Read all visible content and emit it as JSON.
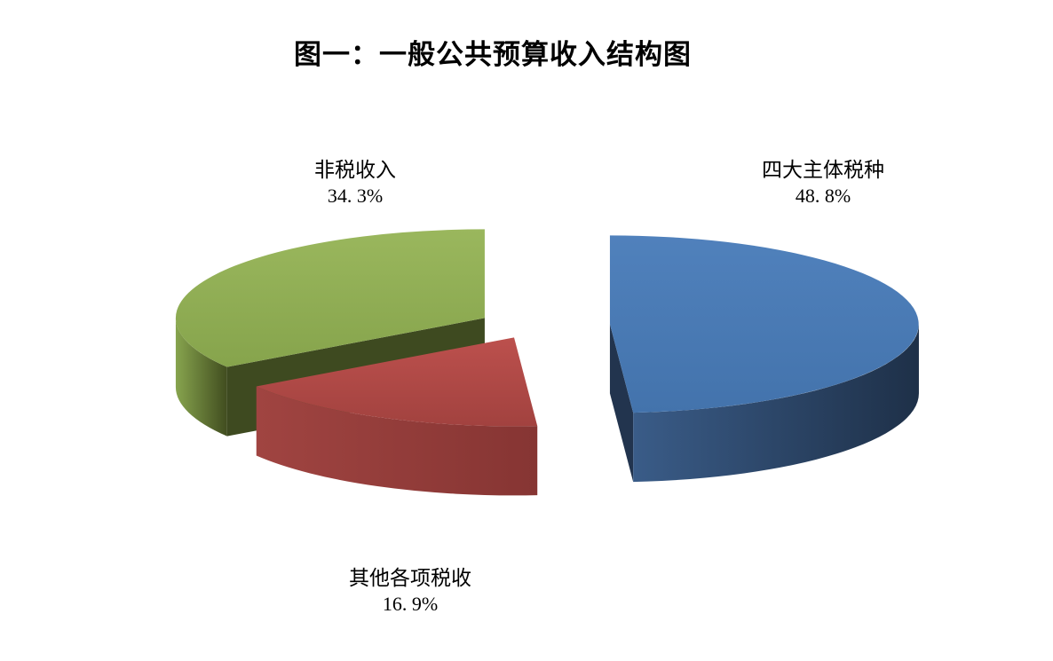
{
  "page": {
    "background": "#ffffff"
  },
  "chart_data": {
    "type": "pie",
    "style": "3d-exploded-pie",
    "title": "图一：一般公共预算收入结构图",
    "legend": "none",
    "unit": "%",
    "start_angle": "12-o'clock, clockwise",
    "slices": [
      {
        "key": "four-major-taxes",
        "label": "四大主体税种",
        "value": 48.8,
        "pct_display": "48. 8%",
        "colors": {
          "top_light": "#5081BC",
          "top_dark": "#4373AC",
          "wall_light": "#3A5C88",
          "wall_dark": "#1E3048",
          "cut": "#22344E"
        }
      },
      {
        "key": "other-taxes",
        "label": "其他各项税收",
        "value": 16.9,
        "pct_display": "16. 9%",
        "colors": {
          "top_light": "#BC504D",
          "top_dark": "#A2423F",
          "wall_light": "#A04441",
          "wall_dark": "#863533",
          "cut": "#8E3937"
        }
      },
      {
        "key": "non-tax-revenue",
        "label": "非税收入",
        "value": 34.3,
        "pct_display": "34. 3%",
        "colors": {
          "top_light": "#9AB75D",
          "top_dark": "#86A44C",
          "wall_light": "#87A44E",
          "wall_dark": "#414D1F",
          "cut": "#3E4A20"
        }
      }
    ]
  }
}
